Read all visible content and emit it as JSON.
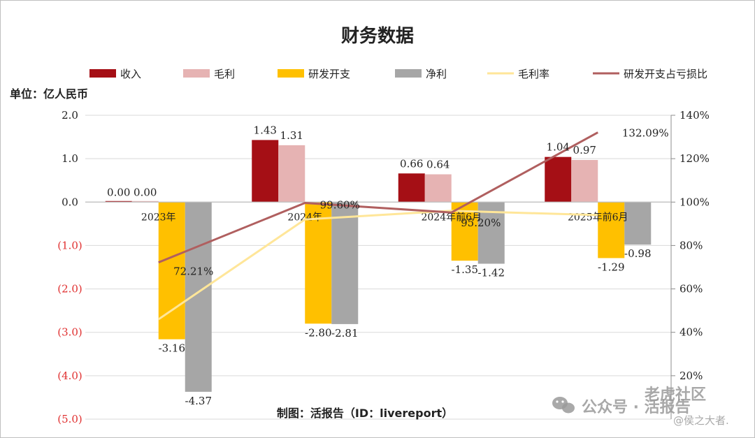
{
  "chart_data": {
    "type": "bar",
    "title": "财务数据",
    "unit_label": "单位：亿人民币",
    "categories": [
      "2023年",
      "2024年",
      "2024年前6月",
      "2025年前6月"
    ],
    "y_left": {
      "range": [
        -5.0,
        2.0
      ],
      "ticks": [
        2.0,
        1.0,
        0.0,
        -1.0,
        -2.0,
        -3.0,
        -4.0,
        -5.0
      ],
      "tick_labels": [
        "2.0",
        "1.0",
        "0.0",
        "(1.0)",
        "(2.0)",
        "(3.0)",
        "(4.0)",
        "(5.0)"
      ],
      "negative_label_color": "#e03030"
    },
    "y_right": {
      "range": [
        0,
        140
      ],
      "ticks": [
        140,
        120,
        100,
        80,
        60,
        40,
        20
      ],
      "tick_labels": [
        "140%",
        "120%",
        "100%",
        "80%",
        "60%",
        "40%",
        "20%"
      ]
    },
    "series": [
      {
        "name": "收入",
        "kind": "bar",
        "color": "#a50f15",
        "values": [
          0.0,
          1.43,
          0.66,
          1.04
        ],
        "labels": [
          "0.00",
          "1.43",
          "0.66",
          "1.04"
        ]
      },
      {
        "name": "毛利",
        "kind": "bar",
        "color": "#e6b3b3",
        "values": [
          0.0,
          1.31,
          0.64,
          0.97
        ],
        "labels": [
          "0.00",
          "1.31",
          "0.64",
          "0.97"
        ]
      },
      {
        "name": "研发开支",
        "kind": "bar",
        "color": "#ffc000",
        "values": [
          -3.16,
          -2.8,
          -1.35,
          -1.29
        ],
        "labels": [
          "-3.16",
          "-2.80",
          "-1.35",
          "-1.29"
        ]
      },
      {
        "name": "净利",
        "kind": "bar",
        "color": "#a6a6a6",
        "values": [
          -4.37,
          -2.81,
          -1.42,
          -0.98
        ],
        "labels": [
          "-4.37",
          "-2.81",
          "-1.42",
          "-0.98"
        ]
      },
      {
        "name": "毛利率",
        "kind": "line",
        "axis": "right",
        "color": "#ffe699",
        "values": [
          46,
          92,
          96,
          94
        ]
      },
      {
        "name": "研发开支占亏损比",
        "kind": "line",
        "axis": "right",
        "color": "#b05f5f",
        "values": [
          72.21,
          99.6,
          95.2,
          132.09
        ],
        "labels": [
          "72.21%",
          "99.60%",
          "95.20%",
          "132.09%"
        ]
      }
    ],
    "grid": true,
    "legend_position": "top"
  },
  "credit": "制图：活报告（ID：livereport）",
  "watermark": {
    "community": "老虎社区",
    "wechat": "公众号 · 活报告",
    "author": "@侯之大者."
  }
}
